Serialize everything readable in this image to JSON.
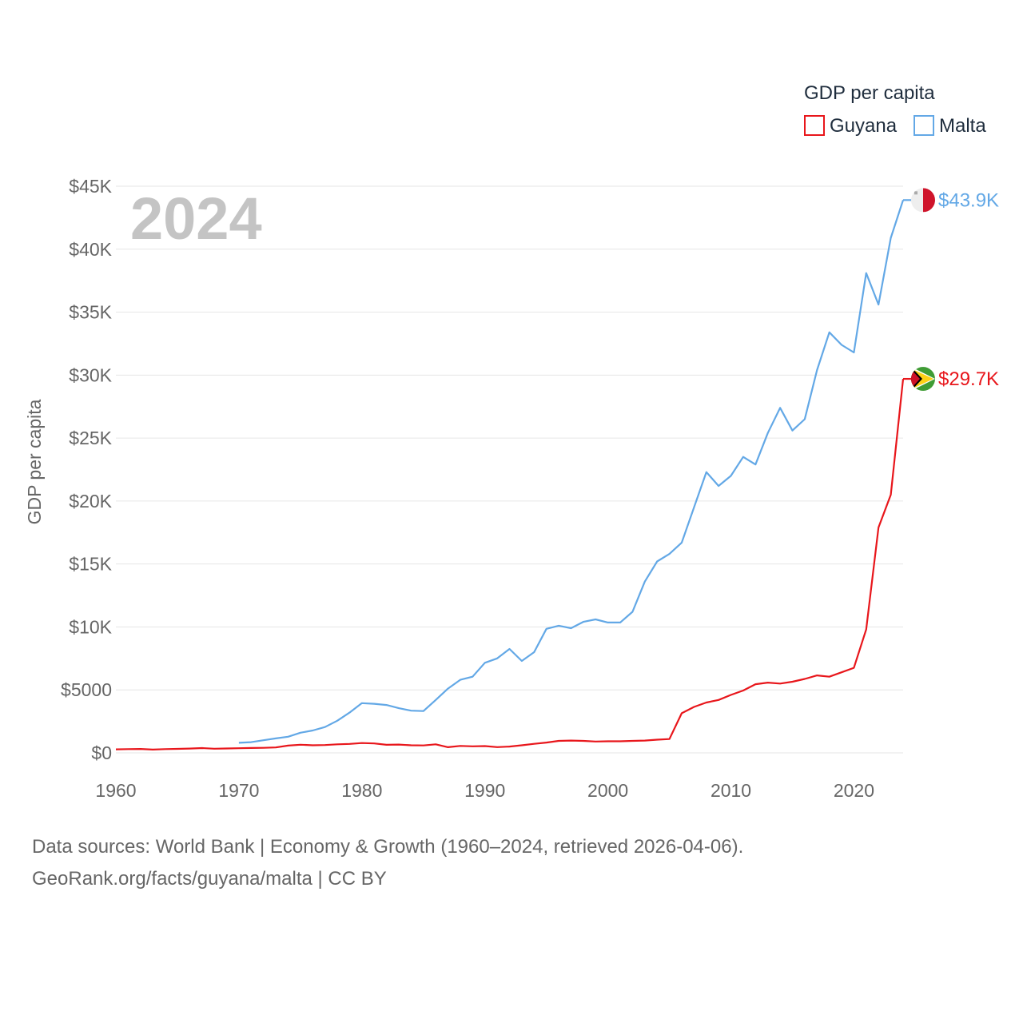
{
  "legend": {
    "title": "GDP per capita"
  },
  "year_label": "2024",
  "footer": {
    "line1": "Data sources: World Bank | Economy & Growth (1960–2024, retrieved 2026-04-06).",
    "line2": "GeoRank.org/facts/guyana/malta | CC BY"
  },
  "colors": {
    "guyana": "#e8161b",
    "malta": "#63a8e6",
    "grid": "#e6e6e6",
    "tick_text": "#666666"
  },
  "chart_data": {
    "type": "line",
    "title": "",
    "xlabel": "",
    "ylabel": "GDP per capita",
    "xlim": [
      1960,
      2024
    ],
    "ylim": [
      0,
      45000
    ],
    "x_ticks": [
      1960,
      1970,
      1980,
      1990,
      2000,
      2010,
      2020
    ],
    "x_tick_labels": [
      "1960",
      "1970",
      "1980",
      "1990",
      "2000",
      "2010",
      "2020"
    ],
    "y_ticks": [
      0,
      5000,
      10000,
      15000,
      20000,
      25000,
      30000,
      35000,
      40000,
      45000
    ],
    "y_tick_labels": [
      "$0",
      "$5000",
      "$10K",
      "$15K",
      "$20K",
      "$25K",
      "$30K",
      "$35K",
      "$40K",
      "$45K"
    ],
    "series": [
      {
        "name": "Guyana",
        "color": "#e8161b",
        "end_label": "$29.7K",
        "flag": "guyana-flag-icon",
        "x": [
          1960,
          1961,
          1962,
          1963,
          1964,
          1965,
          1966,
          1967,
          1968,
          1969,
          1970,
          1971,
          1972,
          1973,
          1974,
          1975,
          1976,
          1977,
          1978,
          1979,
          1980,
          1981,
          1982,
          1983,
          1984,
          1985,
          1986,
          1987,
          1988,
          1989,
          1990,
          1991,
          1992,
          1993,
          1994,
          1995,
          1996,
          1997,
          1998,
          1999,
          2000,
          2001,
          2002,
          2003,
          2004,
          2005,
          2006,
          2007,
          2008,
          2009,
          2010,
          2011,
          2012,
          2013,
          2014,
          2015,
          2016,
          2017,
          2018,
          2019,
          2020,
          2021,
          2022,
          2023,
          2024
        ],
        "values": [
          280,
          300,
          310,
          260,
          300,
          320,
          340,
          380,
          330,
          350,
          370,
          390,
          400,
          430,
          580,
          650,
          600,
          620,
          680,
          710,
          780,
          750,
          640,
          660,
          600,
          590,
          680,
          450,
          550,
          520,
          540,
          460,
          500,
          600,
          720,
          820,
          950,
          980,
          950,
          900,
          920,
          920,
          950,
          980,
          1050,
          1100,
          3150,
          3650,
          4000,
          4200,
          4600,
          4950,
          5450,
          5580,
          5500,
          5650,
          5870,
          6150,
          6050,
          6400,
          6750,
          9800,
          17900,
          20500,
          29700
        ]
      },
      {
        "name": "Malta",
        "color": "#63a8e6",
        "end_label": "$43.9K",
        "flag": "malta-flag-icon",
        "x": [
          1970,
          1971,
          1972,
          1973,
          1974,
          1975,
          1976,
          1977,
          1978,
          1979,
          1980,
          1981,
          1982,
          1983,
          1984,
          1985,
          1986,
          1987,
          1988,
          1989,
          1990,
          1991,
          1992,
          1993,
          1994,
          1995,
          1996,
          1997,
          1998,
          1999,
          2000,
          2001,
          2002,
          2003,
          2004,
          2005,
          2006,
          2007,
          2008,
          2009,
          2010,
          2011,
          2012,
          2013,
          2014,
          2015,
          2016,
          2017,
          2018,
          2019,
          2020,
          2021,
          2022,
          2023,
          2024
        ],
        "values": [
          800,
          850,
          1000,
          1150,
          1280,
          1600,
          1780,
          2050,
          2550,
          3200,
          3950,
          3900,
          3800,
          3550,
          3350,
          3320,
          4200,
          5100,
          5800,
          6050,
          7150,
          7500,
          8250,
          7300,
          8000,
          9850,
          10100,
          9900,
          10400,
          10600,
          10350,
          10350,
          11200,
          13600,
          15200,
          15800,
          16700,
          19500,
          22300,
          21200,
          22000,
          23500,
          22900,
          25400,
          27400,
          25600,
          26500,
          30400,
          33400,
          32400,
          31800,
          38100,
          35600,
          40900,
          43900
        ]
      }
    ]
  }
}
